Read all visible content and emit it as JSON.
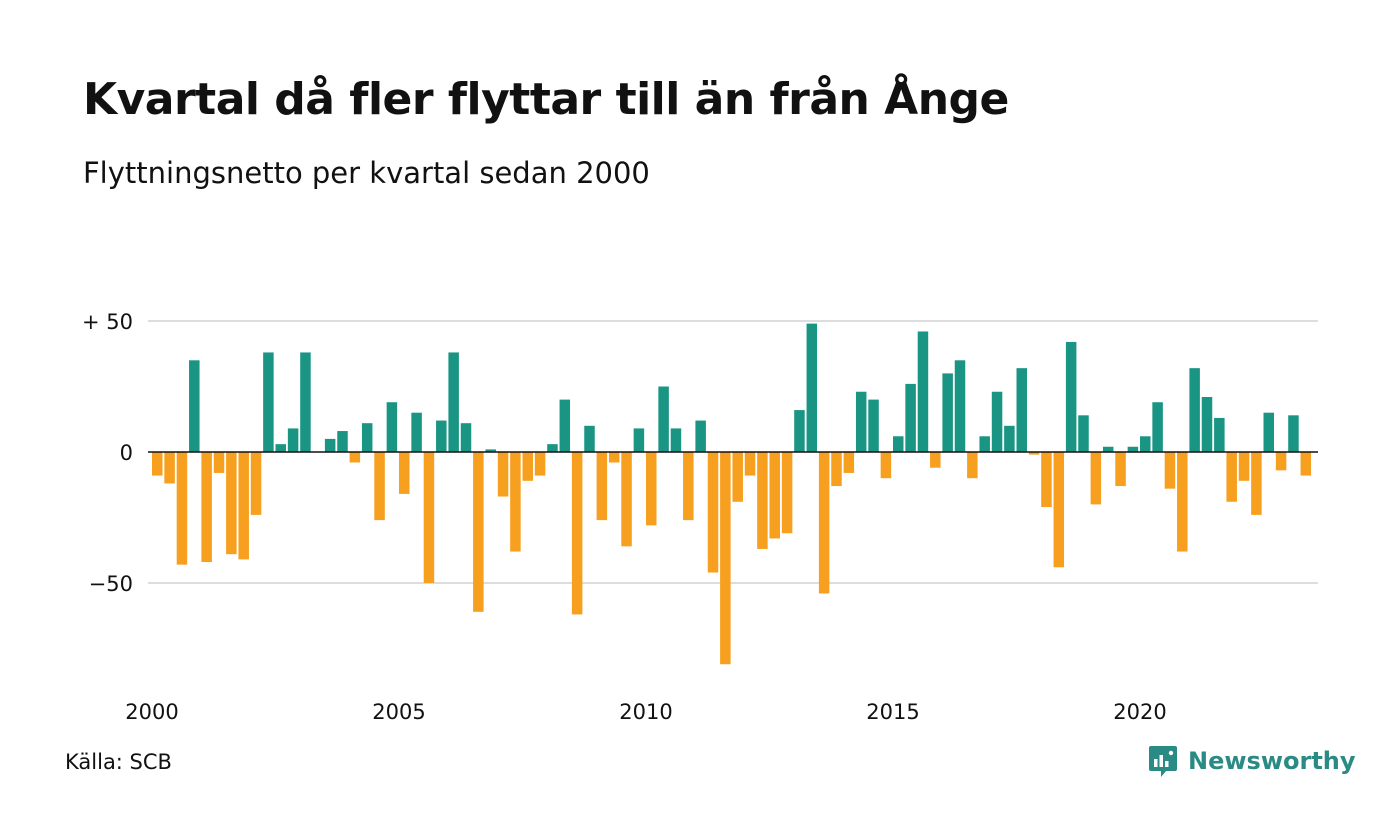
{
  "title": "Kvartal då fler flyttar till än från Ånge",
  "subtitle": "Flyttningsnetto per kvartal sedan 2000",
  "source": "Källa: SCB",
  "brand": {
    "name": "Newsworthy",
    "icon": "newsworthy-logo-icon"
  },
  "colors": {
    "positive": "#1a9584",
    "negative": "#f7a01f",
    "grid": "#dddddd",
    "zero": "#111111"
  },
  "chart_data": {
    "type": "bar",
    "title": "Kvartal då fler flyttar till än från Ånge",
    "subtitle": "Flyttningsnetto per kvartal sedan 2000",
    "xlabel": "",
    "ylabel": "",
    "ylim": [
      -82,
      52
    ],
    "yticks": [
      50,
      0,
      -50
    ],
    "ytick_labels": [
      "+ 50",
      "0",
      "−50"
    ],
    "xticks": [
      2000,
      2005,
      2010,
      2015,
      2020
    ],
    "grid": true,
    "start_year": 2000,
    "categories": [
      "2000 Q1",
      "2000 Q2",
      "2000 Q3",
      "2000 Q4",
      "2001 Q1",
      "2001 Q2",
      "2001 Q3",
      "2001 Q4",
      "2002 Q1",
      "2002 Q2",
      "2002 Q3",
      "2002 Q4",
      "2003 Q1",
      "2003 Q2",
      "2003 Q3",
      "2003 Q4",
      "2004 Q1",
      "2004 Q2",
      "2004 Q3",
      "2004 Q4",
      "2005 Q1",
      "2005 Q2",
      "2005 Q3",
      "2005 Q4",
      "2006 Q1",
      "2006 Q2",
      "2006 Q3",
      "2006 Q4",
      "2007 Q1",
      "2007 Q2",
      "2007 Q3",
      "2007 Q4",
      "2008 Q1",
      "2008 Q2",
      "2008 Q3",
      "2008 Q4",
      "2009 Q1",
      "2009 Q2",
      "2009 Q3",
      "2009 Q4",
      "2010 Q1",
      "2010 Q2",
      "2010 Q3",
      "2010 Q4",
      "2011 Q1",
      "2011 Q2",
      "2011 Q3",
      "2011 Q4",
      "2012 Q1",
      "2012 Q2",
      "2012 Q3",
      "2012 Q4",
      "2013 Q1",
      "2013 Q2",
      "2013 Q3",
      "2013 Q4",
      "2014 Q1",
      "2014 Q2",
      "2014 Q3",
      "2014 Q4",
      "2015 Q1",
      "2015 Q2",
      "2015 Q3",
      "2015 Q4",
      "2016 Q1",
      "2016 Q2",
      "2016 Q3",
      "2016 Q4",
      "2017 Q1",
      "2017 Q2",
      "2017 Q3",
      "2017 Q4",
      "2018 Q1",
      "2018 Q2",
      "2018 Q3",
      "2018 Q4",
      "2019 Q1",
      "2019 Q2",
      "2019 Q3",
      "2019 Q4",
      "2020 Q1",
      "2020 Q2",
      "2020 Q3",
      "2020 Q4",
      "2021 Q1",
      "2021 Q2",
      "2021 Q3",
      "2021 Q4",
      "2022 Q1",
      "2022 Q2",
      "2022 Q3",
      "2022 Q4",
      "2023 Q1",
      "2023 Q2",
      "2023 Q3",
      "2023 Q4"
    ],
    "values": [
      -9,
      -12,
      -43,
      35,
      -42,
      -8,
      -39,
      -41,
      -24,
      38,
      3,
      9,
      38,
      0,
      5,
      8,
      -4,
      11,
      -26,
      19,
      -16,
      15,
      -50,
      12,
      38,
      11,
      -61,
      1,
      -17,
      -38,
      -11,
      -9,
      3,
      20,
      -62,
      10,
      -26,
      -4,
      -36,
      9,
      -28,
      25,
      9,
      -26,
      12,
      -46,
      -81,
      -19,
      -9,
      -37,
      -33,
      -31,
      16,
      49,
      -54,
      -13,
      -8,
      23,
      20,
      -10,
      6,
      26,
      46,
      -6,
      30,
      35,
      -10,
      6,
      23,
      10,
      32,
      -1,
      -21,
      -44,
      42,
      14,
      -20,
      2,
      -13,
      2,
      6,
      19,
      -14,
      -38,
      32,
      21,
      13,
      -19,
      -11,
      -24,
      15,
      -7,
      14,
      -9,
      0,
      0
    ]
  }
}
